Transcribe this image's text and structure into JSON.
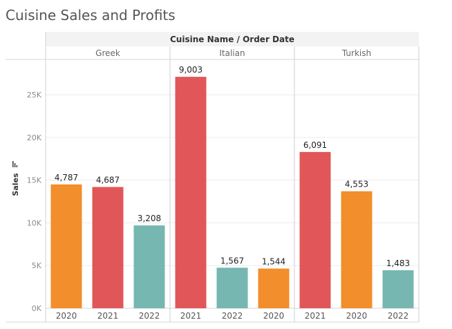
{
  "chart_data": {
    "type": "bar",
    "title": "Cuisine Sales and Profits",
    "column_header": "Cuisine Name / Order Date",
    "ylabel": "Sales",
    "ylim": [
      0,
      28000
    ],
    "yticks": [
      {
        "value": 0,
        "label": "0K"
      },
      {
        "value": 5000,
        "label": "5K"
      },
      {
        "value": 10000,
        "label": "10K"
      },
      {
        "value": 15000,
        "label": "15K"
      },
      {
        "value": 20000,
        "label": "20K"
      },
      {
        "value": 25000,
        "label": "25K"
      }
    ],
    "grid": true,
    "colors": {
      "2020": "#f28e2b",
      "2021": "#e15759",
      "2022": "#76b7b2"
    },
    "panes": [
      {
        "name": "Greek",
        "bars": [
          {
            "year": "2020",
            "sales": 14500,
            "label": "4,787"
          },
          {
            "year": "2021",
            "sales": 14200,
            "label": "4,687"
          },
          {
            "year": "2022",
            "sales": 9700,
            "label": "3,208"
          }
        ]
      },
      {
        "name": "Italian",
        "bars": [
          {
            "year": "2021",
            "sales": 27100,
            "label": "9,003"
          },
          {
            "year": "2022",
            "sales": 4750,
            "label": "1,567"
          },
          {
            "year": "2020",
            "sales": 4650,
            "label": "1,544"
          }
        ]
      },
      {
        "name": "Turkish",
        "bars": [
          {
            "year": "2021",
            "sales": 18300,
            "label": "6,091"
          },
          {
            "year": "2020",
            "sales": 13700,
            "label": "4,553"
          },
          {
            "year": "2022",
            "sales": 4450,
            "label": "1,483"
          }
        ]
      }
    ]
  }
}
